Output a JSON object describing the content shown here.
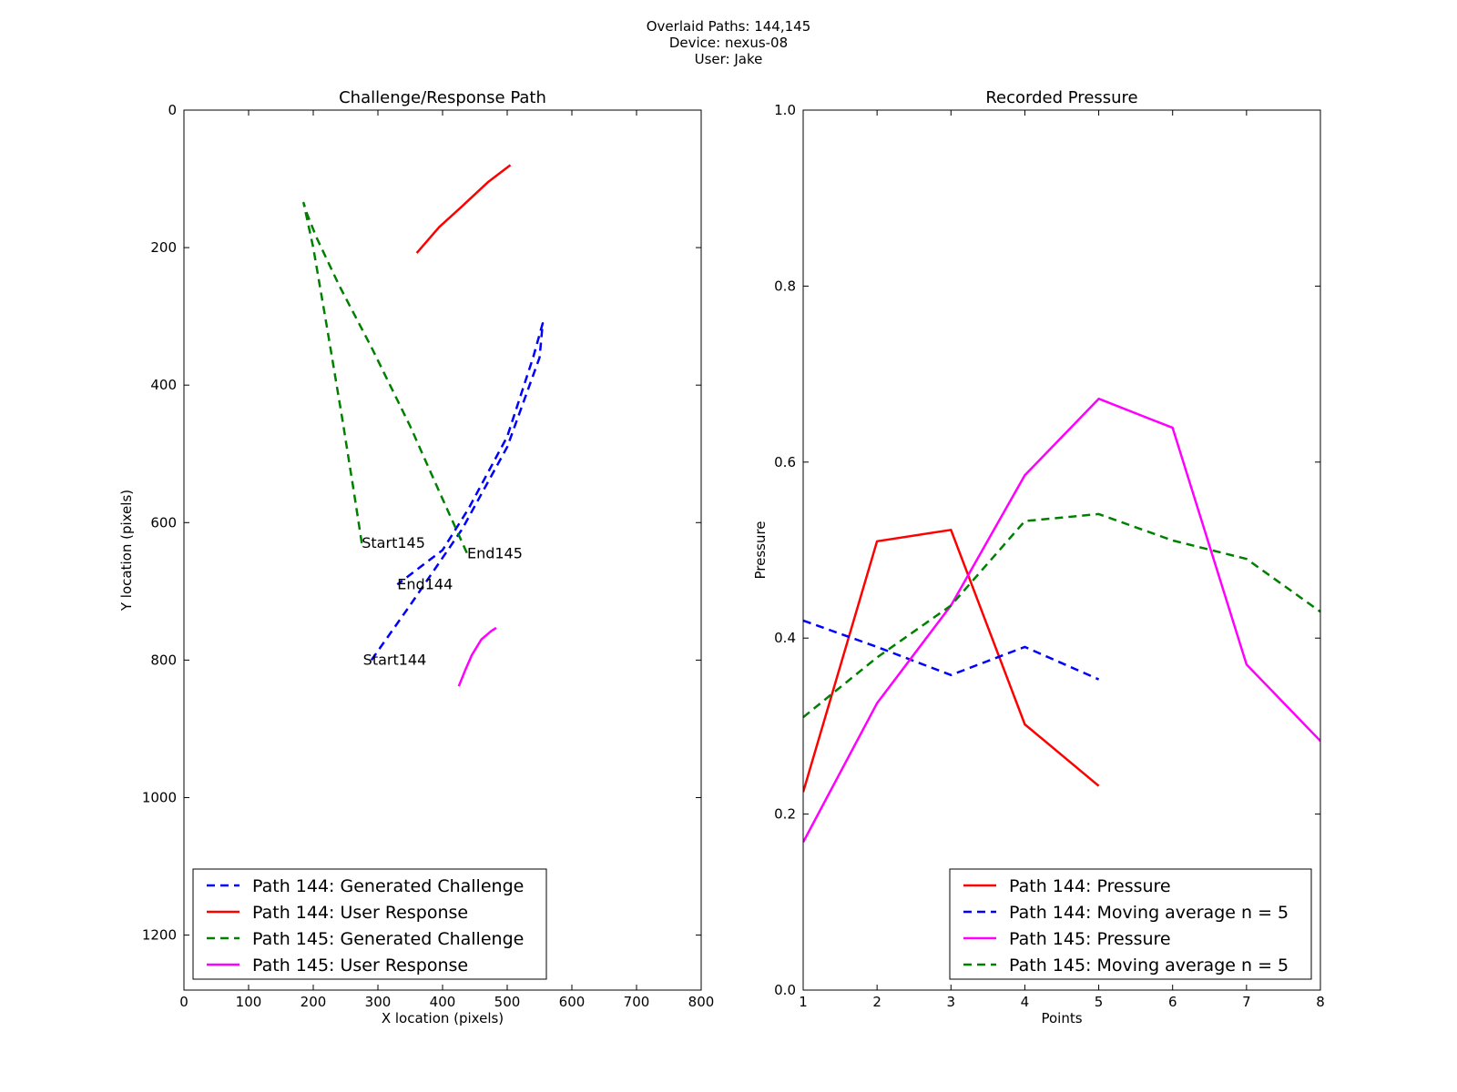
{
  "figure": {
    "title_lines": [
      "Overlaid Paths: 144,145",
      "Device: nexus-08",
      "User: Jake"
    ]
  },
  "chart_data": [
    {
      "type": "line",
      "title": "Challenge/Response Path",
      "xlabel": "X location (pixels)",
      "ylabel": "Y location (pixels)",
      "xlim": [
        0,
        800
      ],
      "ylim": [
        1280,
        0
      ],
      "y_inverted": true,
      "x_ticks": [
        0,
        100,
        200,
        300,
        400,
        500,
        600,
        700,
        800
      ],
      "y_ticks": [
        0,
        200,
        400,
        600,
        800,
        1000,
        1200
      ],
      "grid": false,
      "legend_position": "lower-left",
      "series": [
        {
          "name": "Path 144: Generated Challenge",
          "color": "#0000ff",
          "style": "dashed",
          "x": [
            290,
            350,
            430,
            500,
            550,
            555,
            540,
            500,
            440,
            400,
            330
          ],
          "y": [
            800,
            720,
            610,
            490,
            360,
            310,
            360,
            475,
            580,
            640,
            690
          ]
        },
        {
          "name": "Path 144: User Response",
          "color": "#ff0000",
          "style": "solid",
          "x": [
            360,
            395,
            430,
            470,
            505
          ],
          "y": [
            208,
            170,
            140,
            105,
            80
          ]
        },
        {
          "name": "Path 145: Generated Challenge",
          "color": "#008000",
          "style": "dashed",
          "x": [
            275,
            262,
            245,
            222,
            200,
            185,
            190,
            205,
            240,
            290,
            350,
            395,
            438
          ],
          "y": [
            630,
            550,
            450,
            320,
            200,
            135,
            150,
            185,
            255,
            345,
            460,
            555,
            645
          ]
        },
        {
          "name": "Path 145: User Response",
          "color": "#ff00ff",
          "style": "solid",
          "x": [
            425,
            435,
            445,
            460,
            475,
            483
          ],
          "y": [
            838,
            815,
            793,
            770,
            758,
            753
          ]
        }
      ],
      "annotations": [
        {
          "text": "Start145",
          "x": 275,
          "y": 630
        },
        {
          "text": "End145",
          "x": 438,
          "y": 645
        },
        {
          "text": "End144",
          "x": 330,
          "y": 690
        },
        {
          "text": "Start144",
          "x": 277,
          "y": 800
        }
      ]
    },
    {
      "type": "line",
      "title": "Recorded Pressure",
      "xlabel": "Points",
      "ylabel": "Pressure",
      "xlim": [
        1,
        8
      ],
      "ylim": [
        0.0,
        1.0
      ],
      "x_ticks": [
        1,
        2,
        3,
        4,
        5,
        6,
        7,
        8
      ],
      "y_ticks": [
        "0.0",
        "0.2",
        "0.4",
        "0.6",
        "0.8",
        "1.0"
      ],
      "grid": false,
      "legend_position": "lower-right",
      "series": [
        {
          "name": "Path 144: Pressure",
          "color": "#ff0000",
          "style": "solid",
          "x": [
            1,
            2,
            3,
            4,
            5
          ],
          "y": [
            0.225,
            0.51,
            0.523,
            0.302,
            0.232
          ]
        },
        {
          "name": "Path 144: Moving average n = 5",
          "color": "#0000ff",
          "style": "dashed",
          "x": [
            1,
            2,
            3,
            4,
            5
          ],
          "y": [
            0.42,
            0.39,
            0.358,
            0.39,
            0.353
          ]
        },
        {
          "name": "Path 145: Pressure",
          "color": "#ff00ff",
          "style": "solid",
          "x": [
            1,
            2,
            3,
            4,
            5,
            6,
            7,
            8
          ],
          "y": [
            0.168,
            0.326,
            0.437,
            0.585,
            0.672,
            0.639,
            0.37,
            0.283
          ]
        },
        {
          "name": "Path 145: Moving average n = 5",
          "color": "#008000",
          "style": "dashed",
          "x": [
            1,
            2,
            3,
            4,
            5,
            6,
            7,
            8
          ],
          "y": [
            0.31,
            0.378,
            0.437,
            0.533,
            0.541,
            0.511,
            0.49,
            0.43
          ]
        }
      ]
    }
  ]
}
